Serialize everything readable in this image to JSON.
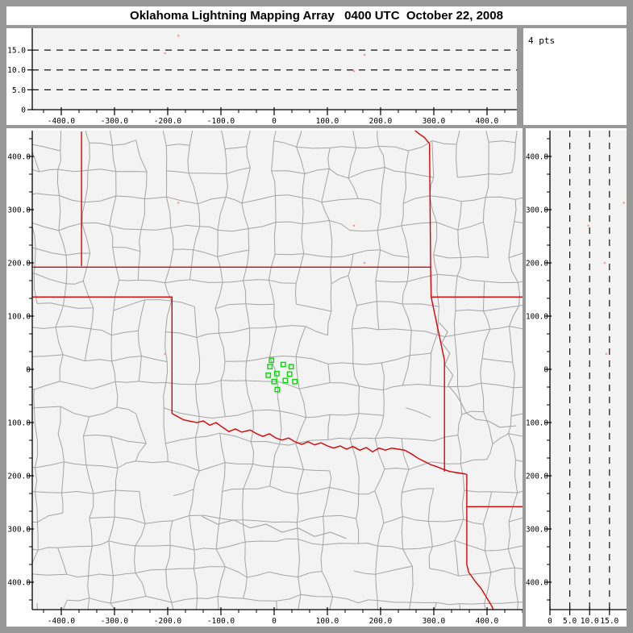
{
  "title": "Oklahoma Lightning Mapping Array   0400 UTC  October 22, 2008",
  "counts_label": "4 pts",
  "colors": {
    "frame": "#989898",
    "panel": "#ffffff",
    "plot_bg": "#f3f3f3",
    "axis": "#000000",
    "dash_line": "#111111",
    "county": "#a4a4a4",
    "river": "#a4a4a4",
    "state_border": "#dd0000",
    "station": "#00dd00",
    "point": "#ff9999"
  },
  "axes": {
    "ew": {
      "range": [
        -454.5,
        466.7
      ],
      "major_ticks": [
        {
          "v": -400,
          "label": "-400.0"
        },
        {
          "v": -300,
          "label": "-300.0"
        },
        {
          "v": -200,
          "label": "-200.0"
        },
        {
          "v": -100,
          "label": "-100.0"
        },
        {
          "v": 0,
          "label": "0"
        },
        {
          "v": 100,
          "label": "100.0"
        },
        {
          "v": 200,
          "label": "200.0"
        },
        {
          "v": 300,
          "label": "300.0"
        },
        {
          "v": 400,
          "label": "400.0"
        }
      ],
      "minor_step": 33.3333
    },
    "ns": {
      "range": [
        -451.5,
        448.5
      ],
      "major_ticks": [
        {
          "v": 400,
          "label": "400.0"
        },
        {
          "v": 300,
          "label": "300.0"
        },
        {
          "v": 200,
          "label": "200.0"
        },
        {
          "v": 100,
          "label": "100.0"
        },
        {
          "v": 0,
          "label": "0"
        },
        {
          "v": -100,
          "label": "-100.0"
        },
        {
          "v": -200,
          "label": "-200.0"
        },
        {
          "v": -300,
          "label": "-300.0"
        },
        {
          "v": -400,
          "label": "-400.0"
        }
      ],
      "minor_step": 33.3333
    },
    "alt_top": {
      "range": [
        0,
        20.5
      ],
      "major_ticks": [
        {
          "v": 0,
          "label": "0"
        },
        {
          "v": 5,
          "label": "5.0"
        },
        {
          "v": 10,
          "label": "10.0"
        },
        {
          "v": 15,
          "label": "15.0"
        }
      ],
      "dashed_levels": [
        5,
        10,
        15
      ]
    },
    "alt_right": {
      "range": [
        0,
        19.3
      ],
      "major_ticks": [
        {
          "v": 0,
          "label": "0"
        },
        {
          "v": 5,
          "label": "5.0"
        },
        {
          "v": 10,
          "label": "10.0"
        },
        {
          "v": 15,
          "label": "15.0"
        }
      ],
      "dashed_levels": [
        5,
        10,
        15
      ]
    }
  },
  "map": {
    "state_borders": [
      [
        [
          -362,
          447
        ],
        [
          -362,
          194
        ]
      ],
      [
        [
          -455,
          192
        ],
        [
          295,
          192
        ]
      ],
      [
        [
          -455,
          136
        ],
        [
          -192,
          136
        ],
        [
          -192,
          -83
        ]
      ],
      [
        [
          -192,
          -83
        ],
        [
          -170,
          -95
        ],
        [
          -145,
          -100
        ],
        [
          -133,
          -97
        ],
        [
          -121,
          -105
        ],
        [
          -109,
          -100
        ],
        [
          -97,
          -109
        ],
        [
          -85,
          -117
        ],
        [
          -73,
          -112
        ],
        [
          -61,
          -118
        ],
        [
          -45,
          -114
        ],
        [
          -33,
          -121
        ],
        [
          -21,
          -126
        ],
        [
          -9,
          -121
        ],
        [
          3,
          -129
        ],
        [
          15,
          -133
        ],
        [
          27,
          -129
        ],
        [
          39,
          -136
        ],
        [
          52,
          -141
        ],
        [
          64,
          -136
        ],
        [
          76,
          -142
        ],
        [
          88,
          -138
        ],
        [
          100,
          -144
        ],
        [
          112,
          -148
        ],
        [
          124,
          -144
        ],
        [
          136,
          -150
        ],
        [
          148,
          -145
        ],
        [
          161,
          -152
        ],
        [
          173,
          -147
        ],
        [
          185,
          -155
        ],
        [
          197,
          -148
        ],
        [
          209,
          -152
        ],
        [
          221,
          -148
        ],
        [
          233,
          -150
        ],
        [
          245,
          -152
        ],
        [
          258,
          -159
        ],
        [
          270,
          -167
        ],
        [
          282,
          -173
        ],
        [
          294,
          -179
        ],
        [
          306,
          -183
        ],
        [
          318,
          -188
        ],
        [
          330,
          -192
        ],
        [
          342,
          -194
        ],
        [
          361,
          -197
        ]
      ],
      [
        [
          262,
          451
        ],
        [
          273,
          442
        ],
        [
          282,
          436
        ],
        [
          292,
          424
        ],
        [
          294,
          192
        ],
        [
          295,
          136
        ]
      ],
      [
        [
          295,
          136
        ],
        [
          467,
          136
        ]
      ],
      [
        [
          295,
          136
        ],
        [
          320,
          17
        ],
        [
          320,
          -192
        ]
      ],
      [
        [
          362,
          -197
        ],
        [
          362,
          -258
        ],
        [
          362,
          -367
        ],
        [
          366,
          -382
        ],
        [
          379,
          -400
        ],
        [
          389,
          -412
        ],
        [
          398,
          -427
        ],
        [
          409,
          -445
        ],
        [
          414,
          -458
        ]
      ],
      [
        [
          362,
          -258
        ],
        [
          467,
          -258
        ]
      ]
    ],
    "rivers": [
      [
        [
          310,
          88
        ],
        [
          326,
          70
        ],
        [
          315,
          50
        ],
        [
          330,
          30
        ],
        [
          321,
          9
        ],
        [
          336,
          -11
        ],
        [
          327,
          -30
        ],
        [
          342,
          -48
        ],
        [
          352,
          -64
        ],
        [
          361,
          -82
        ],
        [
          379,
          -94
        ],
        [
          402,
          -97
        ],
        [
          424,
          -109
        ],
        [
          455,
          -106
        ]
      ],
      [
        [
          -136,
          -276
        ],
        [
          -106,
          -291
        ],
        [
          -76,
          -283
        ],
        [
          -45,
          -298
        ],
        [
          -15,
          -291
        ],
        [
          15,
          -306
        ],
        [
          45,
          -298
        ],
        [
          76,
          -314
        ],
        [
          106,
          -306
        ],
        [
          136,
          -318
        ]
      ]
    ],
    "stations": [
      [
        -5,
        17
      ],
      [
        -8,
        5
      ],
      [
        17,
        9
      ],
      [
        32,
        5
      ],
      [
        -11,
        -11
      ],
      [
        5,
        -8
      ],
      [
        29,
        -9
      ],
      [
        0,
        -23
      ],
      [
        21,
        -21
      ],
      [
        39,
        -23
      ],
      [
        6,
        -38
      ]
    ],
    "county_grid": {
      "seed": 1234,
      "cell_km": 50,
      "jitter_km": 11,
      "skip_prob": 0.15
    }
  },
  "points": [
    {
      "ew": -180,
      "ns": 313,
      "alt": 18.6
    },
    {
      "ew": -205,
      "ns": 29,
      "alt": 14.2
    },
    {
      "ew": 150,
      "ns": 270,
      "alt": 9.7
    },
    {
      "ew": 170,
      "ns": 200,
      "alt": 13.8
    }
  ]
}
